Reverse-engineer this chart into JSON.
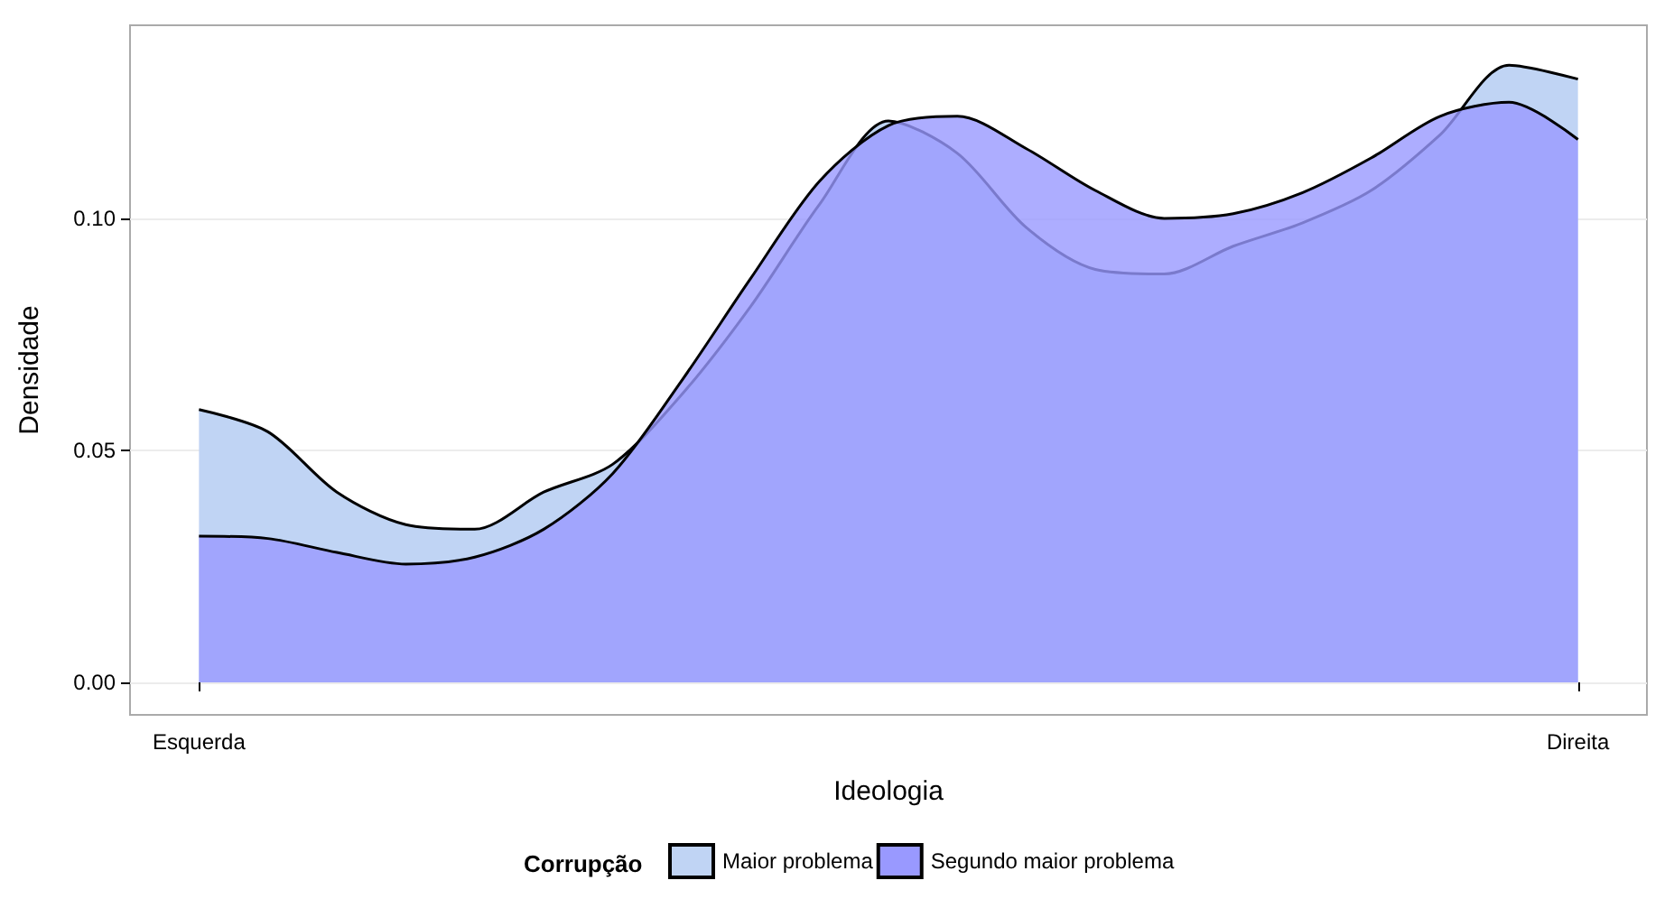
{
  "chart_data": {
    "type": "area",
    "xlabel": "Ideologia",
    "ylabel": "Densidade",
    "legend_title": "Corrupção",
    "legend": "bottom",
    "grid": "y",
    "categories": [
      null,
      "Esquerda",
      null,
      null,
      null,
      null,
      null,
      null,
      null,
      null,
      null,
      null,
      null,
      null,
      null,
      null,
      null,
      null,
      null,
      null,
      null,
      "Direita",
      null
    ],
    "ylim": [
      -0.007,
      0.1416
    ],
    "yticks": [
      {
        "value": 0,
        "label": "0.00"
      },
      {
        "value": 0.05,
        "label": "0.05"
      },
      {
        "value": 0.1,
        "label": "0.10"
      }
    ],
    "series": [
      {
        "name": "Maior problema",
        "color": "#c0d4f4",
        "values": [
          null,
          0.0588,
          0.054,
          0.041,
          0.034,
          0.033,
          0.041,
          0.047,
          0.062,
          0.081,
          0.103,
          0.121,
          0.114,
          0.098,
          0.089,
          0.088,
          0.094,
          0.099,
          0.106,
          0.118,
          0.133,
          0.13,
          null
        ]
      },
      {
        "name": "Segundo maior problema",
        "color": "#9999ff",
        "values": [
          null,
          0.0315,
          0.031,
          0.028,
          0.0255,
          0.027,
          0.033,
          0.045,
          0.065,
          0.087,
          0.108,
          0.12,
          0.122,
          0.115,
          0.106,
          0.1,
          0.101,
          0.1055,
          0.113,
          0.122,
          0.125,
          0.117,
          null
        ]
      }
    ]
  }
}
